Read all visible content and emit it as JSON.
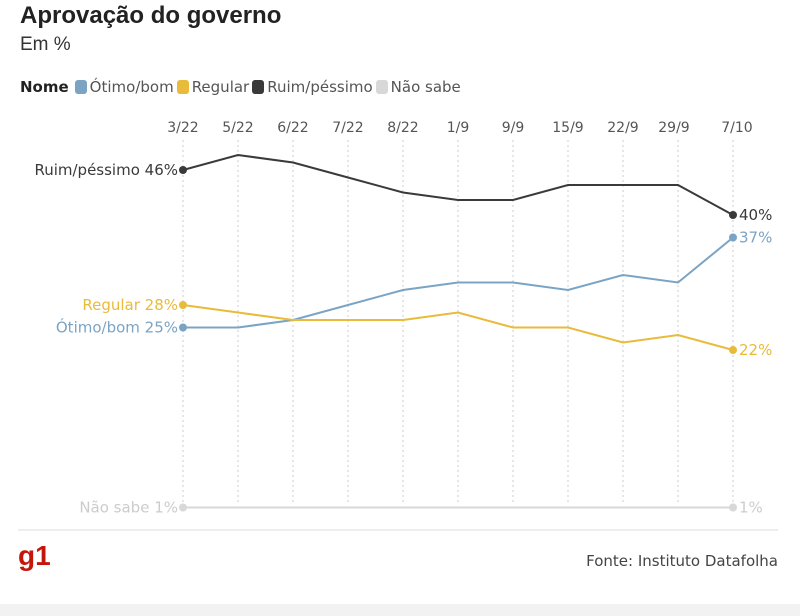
{
  "title": "Aprovação do governo",
  "subtitle": "Em %",
  "legend_title": "Nome",
  "source": "Fonte: Instituto Datafolha",
  "logo": "g1",
  "chart_data": {
    "type": "line",
    "categories": [
      "3/22",
      "5/22",
      "6/22",
      "7/22",
      "8/22",
      "1/9",
      "9/9",
      "15/9",
      "22/9",
      "29/9",
      "7/10"
    ],
    "ylim": [
      0,
      50
    ],
    "grid": "vertical dotted",
    "legend_placement": "top-left",
    "series": [
      {
        "name": "Ótimo/bom",
        "color": "#7ba4c4",
        "values": [
          25,
          25,
          26,
          28,
          30,
          31,
          31,
          30,
          32,
          31,
          37
        ],
        "start_label": "Ótimo/bom 25%",
        "end_label": "37%"
      },
      {
        "name": "Regular",
        "color": "#e8bb3a",
        "values": [
          28,
          27,
          26,
          26,
          26,
          27,
          25,
          25,
          23,
          24,
          22
        ],
        "start_label": "Regular 28%",
        "end_label": "22%"
      },
      {
        "name": "Ruim/péssimo",
        "color": "#3a3a3a",
        "values": [
          46,
          48,
          47,
          45,
          43,
          42,
          42,
          44,
          44,
          44,
          40
        ],
        "start_label": "Ruim/péssimo 46%",
        "end_label": "40%"
      },
      {
        "name": "Não sabe",
        "color": "#d8d8d8",
        "values": [
          1,
          1,
          1,
          1,
          1,
          1,
          1,
          1,
          1,
          1,
          1
        ],
        "start_label": "Não sabe 1%",
        "end_label": "1%"
      }
    ]
  }
}
